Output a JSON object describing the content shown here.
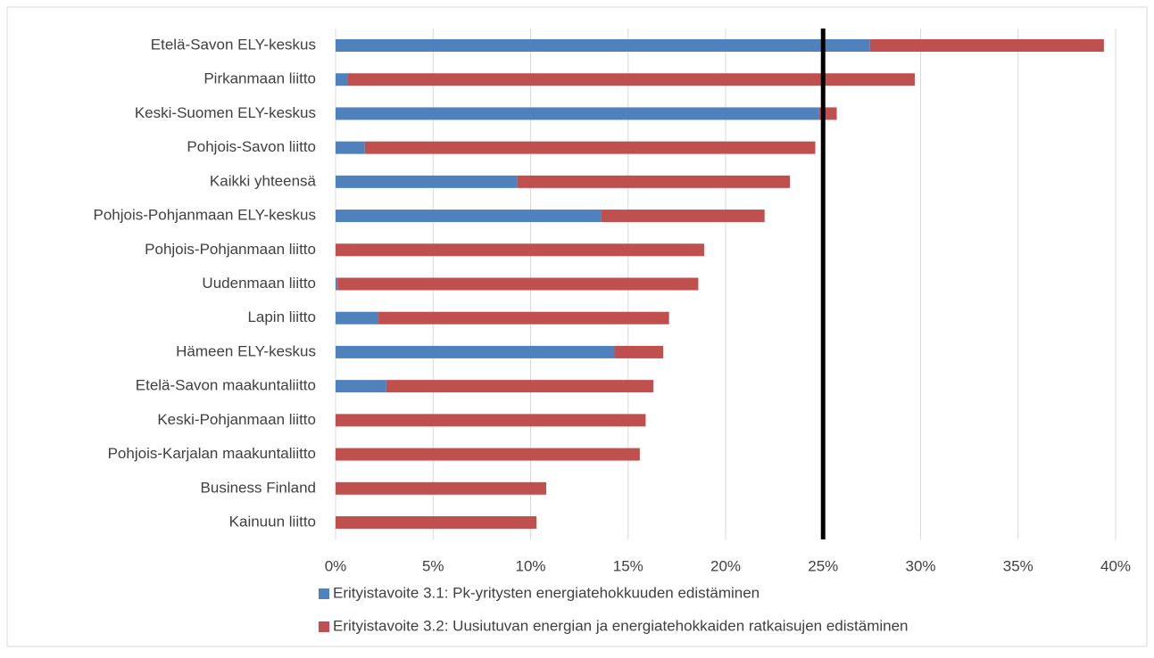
{
  "chart_data": {
    "type": "stacked_barh",
    "categories": [
      "Etelä-Savon ELY-keskus",
      "Pirkanmaan liitto",
      "Keski-Suomen ELY-keskus",
      "Pohjois-Savon liitto",
      "Kaikki yhteensä",
      "Pohjois-Pohjanmaan ELY-keskus",
      "Pohjois-Pohjanmaan liitto",
      "Uudenmaan liitto",
      "Lapin liitto",
      "Hämeen ELY-keskus",
      "Etelä-Savon maakuntaliitto",
      "Keski-Pohjanmaan liitto",
      "Pohjois-Karjalan maakuntaliitto",
      "Business Finland",
      "Kainuun liitto"
    ],
    "series": [
      {
        "name": "Erityistavoite 3.1: Pk-yritysten energiatehokkuuden edistäminen",
        "color": "#4f81bd",
        "values": [
          27.4,
          0.6,
          24.8,
          1.5,
          9.3,
          13.6,
          0,
          0.1,
          2.2,
          14.3,
          2.6,
          0,
          0,
          0,
          0
        ]
      },
      {
        "name": "Erityistavoite 3.2: Uusiutuvan energian ja energiatehokkaiden ratkaisujen edistäminen",
        "color": "#c0504d",
        "values": [
          12.0,
          29.1,
          0.9,
          23.1,
          14.0,
          8.4,
          18.9,
          18.5,
          14.9,
          2.5,
          13.7,
          15.9,
          15.6,
          10.8,
          10.3
        ]
      }
    ],
    "xlim": [
      0,
      40
    ],
    "xticks": [
      {
        "value": 0,
        "label": "0%"
      },
      {
        "value": 5,
        "label": "5%"
      },
      {
        "value": 10,
        "label": "10%"
      },
      {
        "value": 15,
        "label": "15%"
      },
      {
        "value": 20,
        "label": "20%"
      },
      {
        "value": 25,
        "label": "25%"
      },
      {
        "value": 30,
        "label": "30%"
      },
      {
        "value": 35,
        "label": "35%"
      },
      {
        "value": 40,
        "label": "40%"
      }
    ],
    "reference_line": 25,
    "grid": true
  }
}
